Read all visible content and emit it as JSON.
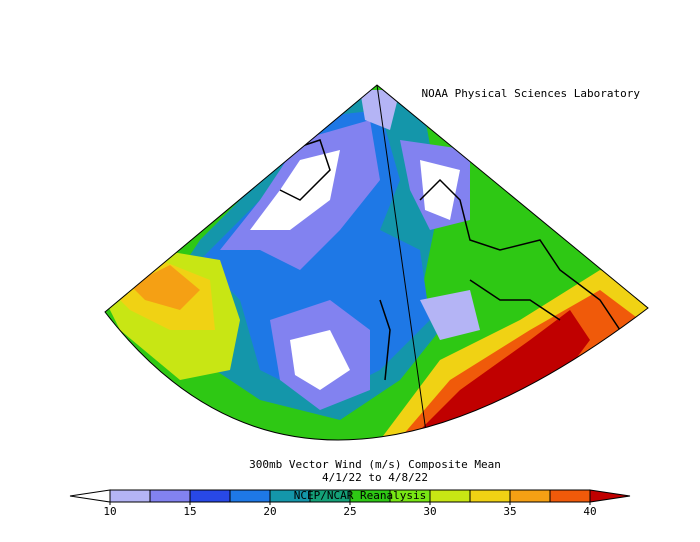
{
  "header": {
    "credit": "NOAA Physical Sciences Laboratory"
  },
  "title": {
    "line1": "300mb Vector Wind (m/s) Composite Mean",
    "line2": "4/1/22  to 4/8/22",
    "source": "NCEP/NCAR Reanalysis"
  },
  "colorbar": {
    "levels": [
      10,
      12.5,
      15,
      17.5,
      20,
      22.5,
      25,
      27.5,
      30,
      32.5,
      35,
      37.5,
      40
    ],
    "colors": [
      "#ffffff",
      "#b4b4f5",
      "#8282f0",
      "#2848e6",
      "#1e78e6",
      "#1496aa",
      "#14a078",
      "#2ec814",
      "#78e614",
      "#c8e614",
      "#f0d214",
      "#f5a014",
      "#f05a0a",
      "#c00000"
    ],
    "ticks": [
      10,
      15,
      20,
      25,
      30,
      35,
      40
    ]
  }
}
